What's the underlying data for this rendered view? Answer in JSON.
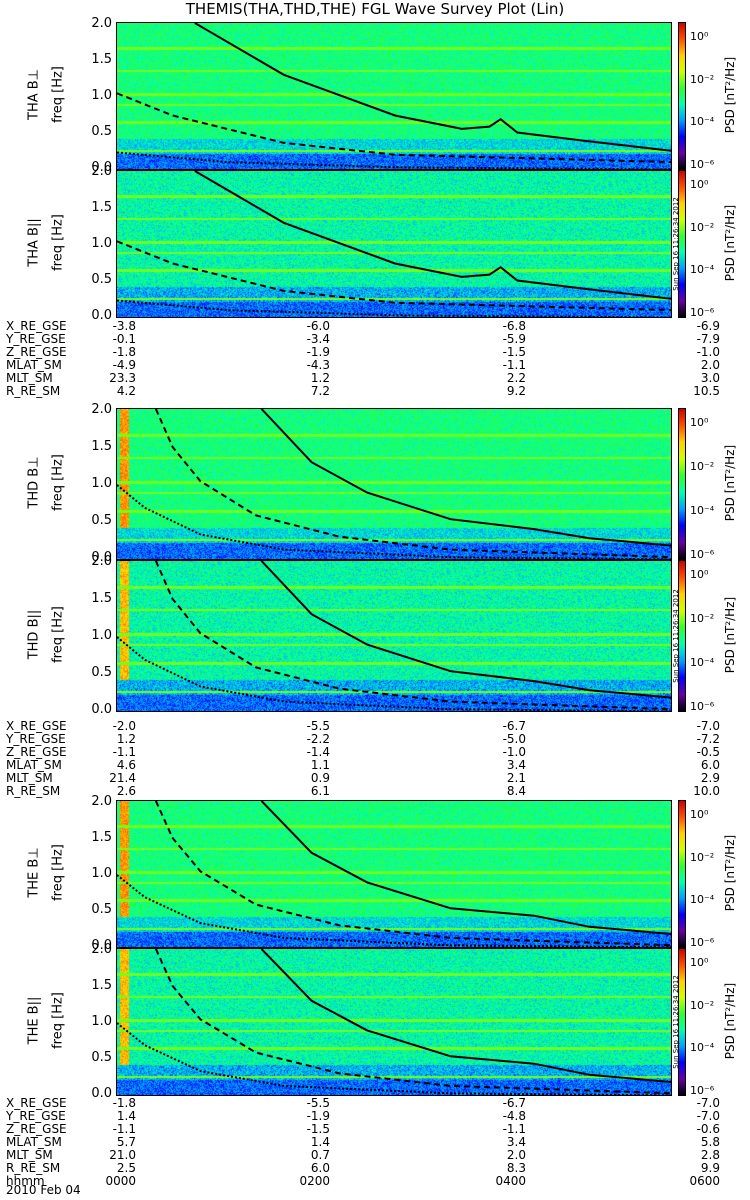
{
  "title": "THEMIS(THA,THD,THE) FGL Wave Survey Plot (Lin)",
  "colorbar": {
    "label": "PSD [nT²/Hz]",
    "ticks": [
      "10⁰",
      "10⁻²",
      "10⁻⁴",
      "10⁻⁶"
    ],
    "stamp": "Sun Sep 16 11:26:34 2012",
    "colors": [
      "#000000",
      "#6a00a8",
      "#0000ff",
      "#00a0ff",
      "#00ffb0",
      "#30ff30",
      "#d0ff00",
      "#ffd000",
      "#ff5000",
      "#d00000"
    ]
  },
  "chart_data": [
    {
      "type": "heatmap",
      "ylabel": "THA B⊥",
      "yunit": "freq [Hz]",
      "ylim": [
        0,
        2.0
      ],
      "yticks": [
        "2.0",
        "1.5",
        "1.0",
        "0.5",
        "0.0"
      ],
      "xlim": [
        "0000",
        "0600"
      ],
      "curves": {
        "solid": [
          [
            0.14,
            2.0
          ],
          [
            0.3,
            1.3
          ],
          [
            0.5,
            0.75
          ],
          [
            0.62,
            0.57
          ],
          [
            0.67,
            0.6
          ],
          [
            0.69,
            0.7
          ],
          [
            0.72,
            0.52
          ],
          [
            0.85,
            0.4
          ],
          [
            1.0,
            0.27
          ]
        ],
        "dashed": [
          [
            0.0,
            1.05
          ],
          [
            0.1,
            0.75
          ],
          [
            0.3,
            0.38
          ],
          [
            0.5,
            0.22
          ],
          [
            0.7,
            0.18
          ],
          [
            1.0,
            0.12
          ]
        ],
        "dotted": [
          [
            0.0,
            0.25
          ],
          [
            0.2,
            0.12
          ],
          [
            0.5,
            0.05
          ],
          [
            1.0,
            0.02
          ]
        ]
      }
    },
    {
      "type": "heatmap",
      "ylabel": "THA B||",
      "yunit": "freq [Hz]",
      "ylim": [
        0,
        2.0
      ],
      "yticks": [
        "2.0",
        "1.5",
        "1.0",
        "0.5",
        "0.0"
      ],
      "xlim": [
        "0000",
        "0600"
      ],
      "curves": {
        "solid": [
          [
            0.14,
            2.0
          ],
          [
            0.3,
            1.3
          ],
          [
            0.5,
            0.75
          ],
          [
            0.62,
            0.57
          ],
          [
            0.67,
            0.6
          ],
          [
            0.69,
            0.7
          ],
          [
            0.72,
            0.52
          ],
          [
            0.85,
            0.4
          ],
          [
            1.0,
            0.27
          ]
        ],
        "dashed": [
          [
            0.0,
            1.05
          ],
          [
            0.1,
            0.75
          ],
          [
            0.3,
            0.38
          ],
          [
            0.5,
            0.22
          ],
          [
            0.7,
            0.18
          ],
          [
            1.0,
            0.12
          ]
        ],
        "dotted": [
          [
            0.0,
            0.25
          ],
          [
            0.2,
            0.12
          ],
          [
            0.5,
            0.05
          ],
          [
            1.0,
            0.02
          ]
        ]
      }
    },
    {
      "type": "heatmap",
      "ylabel": "THD B⊥",
      "yunit": "freq [Hz]",
      "ylim": [
        0,
        2.0
      ],
      "yticks": [
        "2.0",
        "1.5",
        "1.0",
        "0.5",
        "0.0"
      ],
      "xlim": [
        "0000",
        "0600"
      ],
      "curves": {
        "solid": [
          [
            0.26,
            2.0
          ],
          [
            0.35,
            1.3
          ],
          [
            0.45,
            0.9
          ],
          [
            0.6,
            0.55
          ],
          [
            0.75,
            0.42
          ],
          [
            0.85,
            0.3
          ],
          [
            1.0,
            0.2
          ]
        ],
        "dashed": [
          [
            0.07,
            2.0
          ],
          [
            0.1,
            1.5
          ],
          [
            0.15,
            1.05
          ],
          [
            0.25,
            0.6
          ],
          [
            0.4,
            0.32
          ],
          [
            0.6,
            0.15
          ],
          [
            1.0,
            0.05
          ]
        ],
        "dotted": [
          [
            0.0,
            1.0
          ],
          [
            0.05,
            0.7
          ],
          [
            0.15,
            0.35
          ],
          [
            0.3,
            0.15
          ],
          [
            0.6,
            0.05
          ],
          [
            1.0,
            0.02
          ]
        ]
      }
    },
    {
      "type": "heatmap",
      "ylabel": "THD B||",
      "yunit": "freq [Hz]",
      "ylim": [
        0,
        2.0
      ],
      "yticks": [
        "2.0",
        "1.5",
        "1.0",
        "0.5",
        "0.0"
      ],
      "xlim": [
        "0000",
        "0600"
      ],
      "curves": {
        "solid": [
          [
            0.26,
            2.0
          ],
          [
            0.35,
            1.3
          ],
          [
            0.45,
            0.9
          ],
          [
            0.6,
            0.55
          ],
          [
            0.75,
            0.42
          ],
          [
            0.85,
            0.3
          ],
          [
            1.0,
            0.2
          ]
        ],
        "dashed": [
          [
            0.07,
            2.0
          ],
          [
            0.1,
            1.5
          ],
          [
            0.15,
            1.05
          ],
          [
            0.25,
            0.6
          ],
          [
            0.4,
            0.32
          ],
          [
            0.6,
            0.15
          ],
          [
            1.0,
            0.05
          ]
        ],
        "dotted": [
          [
            0.0,
            1.0
          ],
          [
            0.05,
            0.7
          ],
          [
            0.15,
            0.35
          ],
          [
            0.3,
            0.15
          ],
          [
            0.6,
            0.05
          ],
          [
            1.0,
            0.02
          ]
        ]
      }
    },
    {
      "type": "heatmap",
      "ylabel": "THE B⊥",
      "yunit": "freq [Hz]",
      "ylim": [
        0,
        2.0
      ],
      "yticks": [
        "2.0",
        "1.5",
        "1.0",
        "0.5",
        "0.0"
      ],
      "xlim": [
        "0000",
        "0600"
      ],
      "curves": {
        "solid": [
          [
            0.26,
            2.0
          ],
          [
            0.35,
            1.3
          ],
          [
            0.45,
            0.9
          ],
          [
            0.6,
            0.55
          ],
          [
            0.75,
            0.45
          ],
          [
            0.85,
            0.3
          ],
          [
            1.0,
            0.2
          ]
        ],
        "dashed": [
          [
            0.07,
            2.0
          ],
          [
            0.1,
            1.5
          ],
          [
            0.15,
            1.05
          ],
          [
            0.25,
            0.6
          ],
          [
            0.4,
            0.32
          ],
          [
            0.6,
            0.15
          ],
          [
            1.0,
            0.05
          ]
        ],
        "dotted": [
          [
            0.0,
            1.0
          ],
          [
            0.05,
            0.7
          ],
          [
            0.15,
            0.35
          ],
          [
            0.3,
            0.15
          ],
          [
            0.6,
            0.05
          ],
          [
            1.0,
            0.02
          ]
        ]
      }
    },
    {
      "type": "heatmap",
      "ylabel": "THE B||",
      "yunit": "freq [Hz]",
      "ylim": [
        0,
        2.0
      ],
      "yticks": [
        "2.0",
        "1.5",
        "1.0",
        "0.5",
        "0.0"
      ],
      "xlim": [
        "0000",
        "0600"
      ],
      "curves": {
        "solid": [
          [
            0.26,
            2.0
          ],
          [
            0.35,
            1.3
          ],
          [
            0.45,
            0.9
          ],
          [
            0.6,
            0.55
          ],
          [
            0.75,
            0.45
          ],
          [
            0.85,
            0.3
          ],
          [
            1.0,
            0.2
          ]
        ],
        "dashed": [
          [
            0.07,
            2.0
          ],
          [
            0.1,
            1.5
          ],
          [
            0.15,
            1.05
          ],
          [
            0.25,
            0.6
          ],
          [
            0.4,
            0.32
          ],
          [
            0.6,
            0.15
          ],
          [
            1.0,
            0.05
          ]
        ],
        "dotted": [
          [
            0.0,
            1.0
          ],
          [
            0.05,
            0.7
          ],
          [
            0.15,
            0.35
          ],
          [
            0.3,
            0.15
          ],
          [
            0.6,
            0.05
          ],
          [
            1.0,
            0.02
          ]
        ]
      }
    }
  ],
  "ephemeris": [
    {
      "rows": [
        {
          "label": "X_RE_GSE",
          "values": [
            "-3.8",
            "-6.0",
            "-6.8",
            "-6.9"
          ]
        },
        {
          "label": "Y_RE_GSE",
          "values": [
            "-0.1",
            "-3.4",
            "-5.9",
            "-7.9"
          ]
        },
        {
          "label": "Z_RE_GSE",
          "values": [
            "-1.8",
            "-1.9",
            "-1.5",
            "-1.0"
          ]
        },
        {
          "label": "MLAT_SM",
          "values": [
            "-4.9",
            "-4.3",
            "-1.1",
            "2.0"
          ]
        },
        {
          "label": "MLT_SM",
          "values": [
            "23.3",
            "1.2",
            "2.2",
            "3.0"
          ]
        },
        {
          "label": "R_RE_SM",
          "values": [
            "4.2",
            "7.2",
            "9.2",
            "10.5"
          ]
        }
      ]
    },
    {
      "rows": [
        {
          "label": "X_RE_GSE",
          "values": [
            "-2.0",
            "-5.5",
            "-6.7",
            "-7.0"
          ]
        },
        {
          "label": "Y_RE_GSE",
          "values": [
            "1.2",
            "-2.2",
            "-5.0",
            "-7.2"
          ]
        },
        {
          "label": "Z_RE_GSE",
          "values": [
            "-1.1",
            "-1.4",
            "-1.0",
            "-0.5"
          ]
        },
        {
          "label": "MLAT_SM",
          "values": [
            "4.6",
            "1.1",
            "3.4",
            "6.0"
          ]
        },
        {
          "label": "MLT_SM",
          "values": [
            "21.4",
            "0.9",
            "2.1",
            "2.9"
          ]
        },
        {
          "label": "R_RE_SM",
          "values": [
            "2.6",
            "6.1",
            "8.4",
            "10.0"
          ]
        }
      ]
    },
    {
      "rows": [
        {
          "label": "X_RE_GSE",
          "values": [
            "-1.8",
            "-5.5",
            "-6.7",
            "-7.0"
          ]
        },
        {
          "label": "Y_RE_GSE",
          "values": [
            "1.4",
            "-1.9",
            "-4.8",
            "-7.0"
          ]
        },
        {
          "label": "Z_RE_GSE",
          "values": [
            "-1.1",
            "-1.5",
            "-1.1",
            "-0.6"
          ]
        },
        {
          "label": "MLAT_SM",
          "values": [
            "5.7",
            "1.4",
            "3.4",
            "5.8"
          ]
        },
        {
          "label": "MLT_SM",
          "values": [
            "21.0",
            "0.7",
            "2.0",
            "2.8"
          ]
        },
        {
          "label": "R_RE_SM",
          "values": [
            "2.5",
            "6.0",
            "8.3",
            "9.9"
          ]
        },
        {
          "label": "hhmm",
          "values": [
            "0000",
            "0200",
            "0400",
            "0600"
          ]
        }
      ]
    }
  ],
  "date": "2010 Feb 04"
}
